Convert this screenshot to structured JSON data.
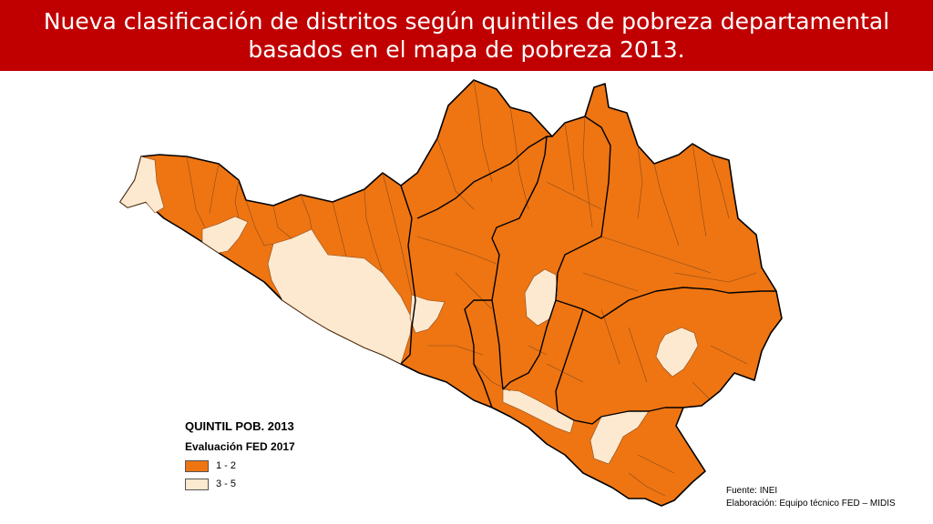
{
  "title": {
    "line1": "Nueva clasificación de distritos según quintiles de pobreza departamental",
    "line2": "basados en el mapa de pobreza 2013."
  },
  "colors": {
    "header_bg": "#c00000",
    "quintile_1_2": "#ee7512",
    "quintile_3_5": "#fde9cf",
    "province_border": "#000000",
    "district_border": "#8a4a1a"
  },
  "legend": {
    "title": "QUINTIL POB. 2013",
    "subtitle": "Evaluación FED 2017",
    "items": [
      {
        "label": "1 - 2",
        "color": "#ee7512"
      },
      {
        "label": "3 - 5",
        "color": "#fde9cf"
      }
    ]
  },
  "source": {
    "line1": "Fuente: INEI",
    "line2": "Elaboración: Equipo técnico FED – MIDIS"
  }
}
